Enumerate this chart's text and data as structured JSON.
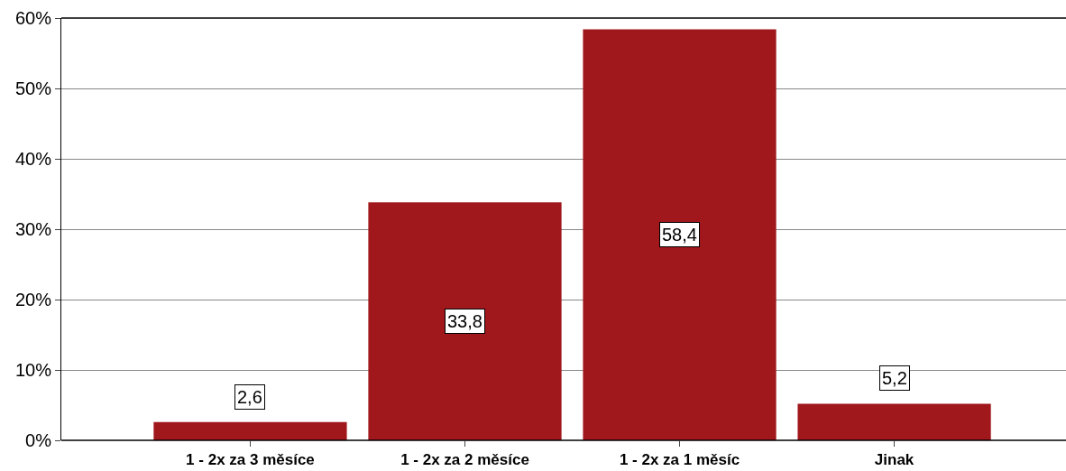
{
  "chart_data": {
    "type": "bar",
    "categories": [
      "1 - 2x za 3 měsíce",
      "1 - 2x za 2 měsíce",
      "1 - 2x za 1 měsíc",
      "Jinak"
    ],
    "values": [
      2.6,
      33.8,
      58.4,
      5.2
    ],
    "value_labels": [
      "2,6",
      "33,8",
      "58,4",
      "5,2"
    ],
    "color": "#a0171c",
    "ylim": [
      0,
      60
    ],
    "yticks": [
      {
        "value": 0,
        "label": "0%"
      },
      {
        "value": 10,
        "label": "10%"
      },
      {
        "value": 20,
        "label": "20%"
      },
      {
        "value": 30,
        "label": "30%"
      },
      {
        "value": 40,
        "label": "40%"
      },
      {
        "value": 50,
        "label": "50%"
      },
      {
        "value": 60,
        "label": "60%"
      }
    ],
    "grid": "y",
    "legend": false
  }
}
